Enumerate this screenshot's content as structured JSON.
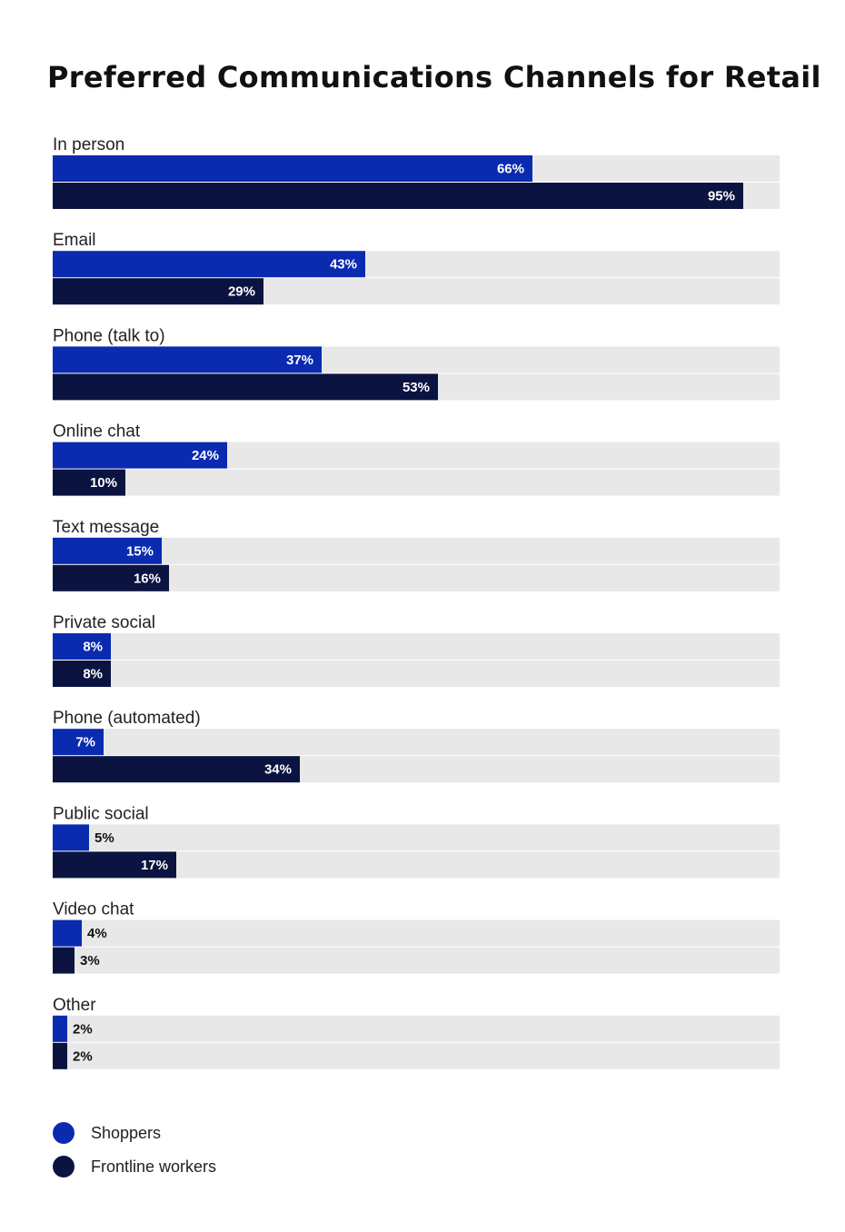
{
  "chart_data": {
    "type": "bar",
    "orientation": "horizontal",
    "title": "Preferred Communications Channels for Retail",
    "categories": [
      "In person",
      "Email",
      "Phone (talk to)",
      "Online chat",
      "Text message",
      "Private social",
      "Phone (automated)",
      "Public social",
      "Video chat",
      "Other"
    ],
    "series": [
      {
        "name": "Shoppers",
        "color": "#0a2bb0",
        "values": [
          66,
          43,
          37,
          24,
          15,
          8,
          7,
          5,
          4,
          2
        ],
        "labels": [
          "66%",
          "43%",
          "37%",
          "24%",
          "15%",
          "8%",
          "7%",
          "5%",
          "4%",
          "2%"
        ]
      },
      {
        "name": "Frontline workers",
        "color": "#0b1440",
        "values": [
          95,
          29,
          53,
          10,
          16,
          8,
          34,
          17,
          3,
          2
        ],
        "labels": [
          "95%",
          "29%",
          "53%",
          "10%",
          "16%",
          "8%",
          "34%",
          "17%",
          "3%",
          "2%"
        ]
      }
    ],
    "xlim": [
      0,
      100
    ],
    "unit": "%",
    "track_color": "#e8e8e8",
    "grid": false,
    "legend_position": "bottom-left"
  }
}
